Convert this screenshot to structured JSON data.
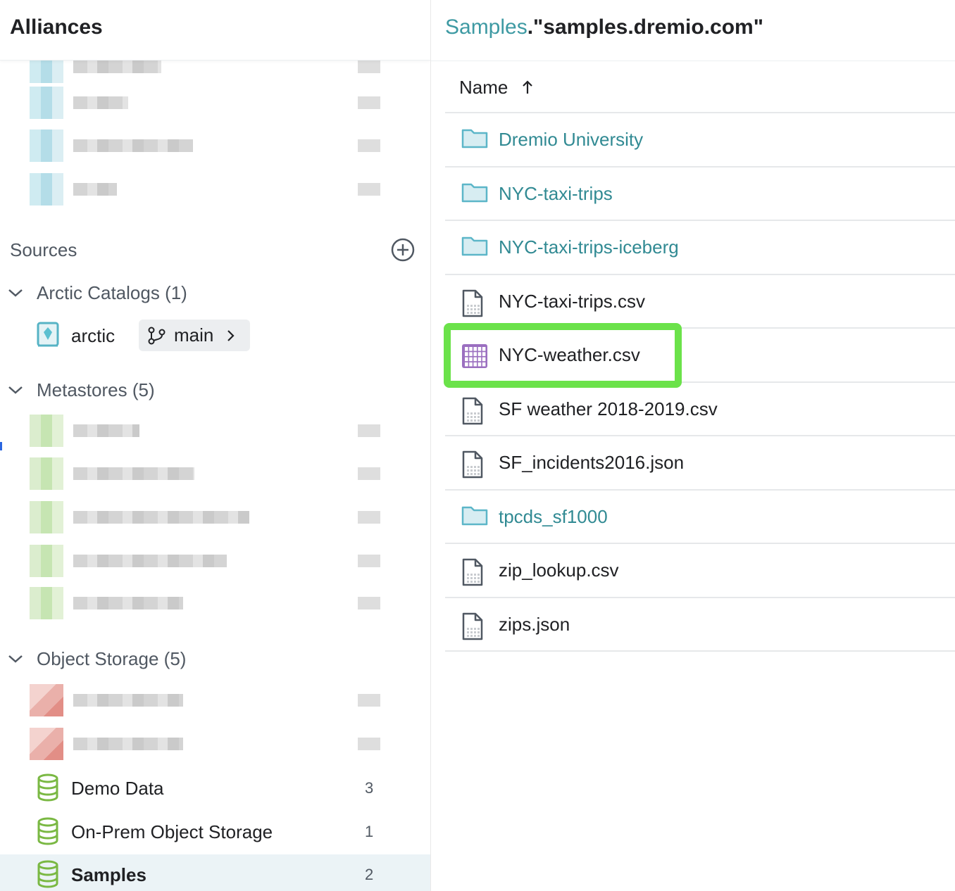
{
  "left_panel": {
    "title": "Alliances",
    "sources_label": "Sources",
    "groups": [
      {
        "label": "Arctic Catalogs (1)",
        "expanded": true
      },
      {
        "label": "Metastores (5)",
        "expanded": true
      },
      {
        "label": "Object Storage (5)",
        "expanded": true
      }
    ],
    "arctic": {
      "name": "arctic",
      "branch": "main"
    },
    "object_storage_items": [
      {
        "name": "Demo Data",
        "count": "3",
        "selected": false
      },
      {
        "name": "On-Prem Object Storage",
        "count": "1",
        "selected": false
      },
      {
        "name": "Samples",
        "count": "2",
        "selected": true
      }
    ]
  },
  "right_panel": {
    "breadcrumb_source": "Samples",
    "breadcrumb_path": ".\"samples.dremio.com\"",
    "column_name": "Name",
    "sort_icon": "arrow-up-icon",
    "rows": [
      {
        "name": "Dremio University",
        "type": "folder"
      },
      {
        "name": "NYC-taxi-trips",
        "type": "folder"
      },
      {
        "name": "NYC-taxi-trips-iceberg",
        "type": "folder"
      },
      {
        "name": "NYC-taxi-trips.csv",
        "type": "file"
      },
      {
        "name": "NYC-weather.csv",
        "type": "dataset",
        "highlighted": true
      },
      {
        "name": "SF weather 2018-2019.csv",
        "type": "file"
      },
      {
        "name": "SF_incidents2016.json",
        "type": "file"
      },
      {
        "name": "tpcds_sf1000",
        "type": "folder"
      },
      {
        "name": "zip_lookup.csv",
        "type": "file"
      },
      {
        "name": "zips.json",
        "type": "file"
      }
    ]
  },
  "colors": {
    "accent": "#318a93",
    "highlight": "#6be24a",
    "dataset": "#9b6fc0",
    "source_green": "#7ab843"
  }
}
